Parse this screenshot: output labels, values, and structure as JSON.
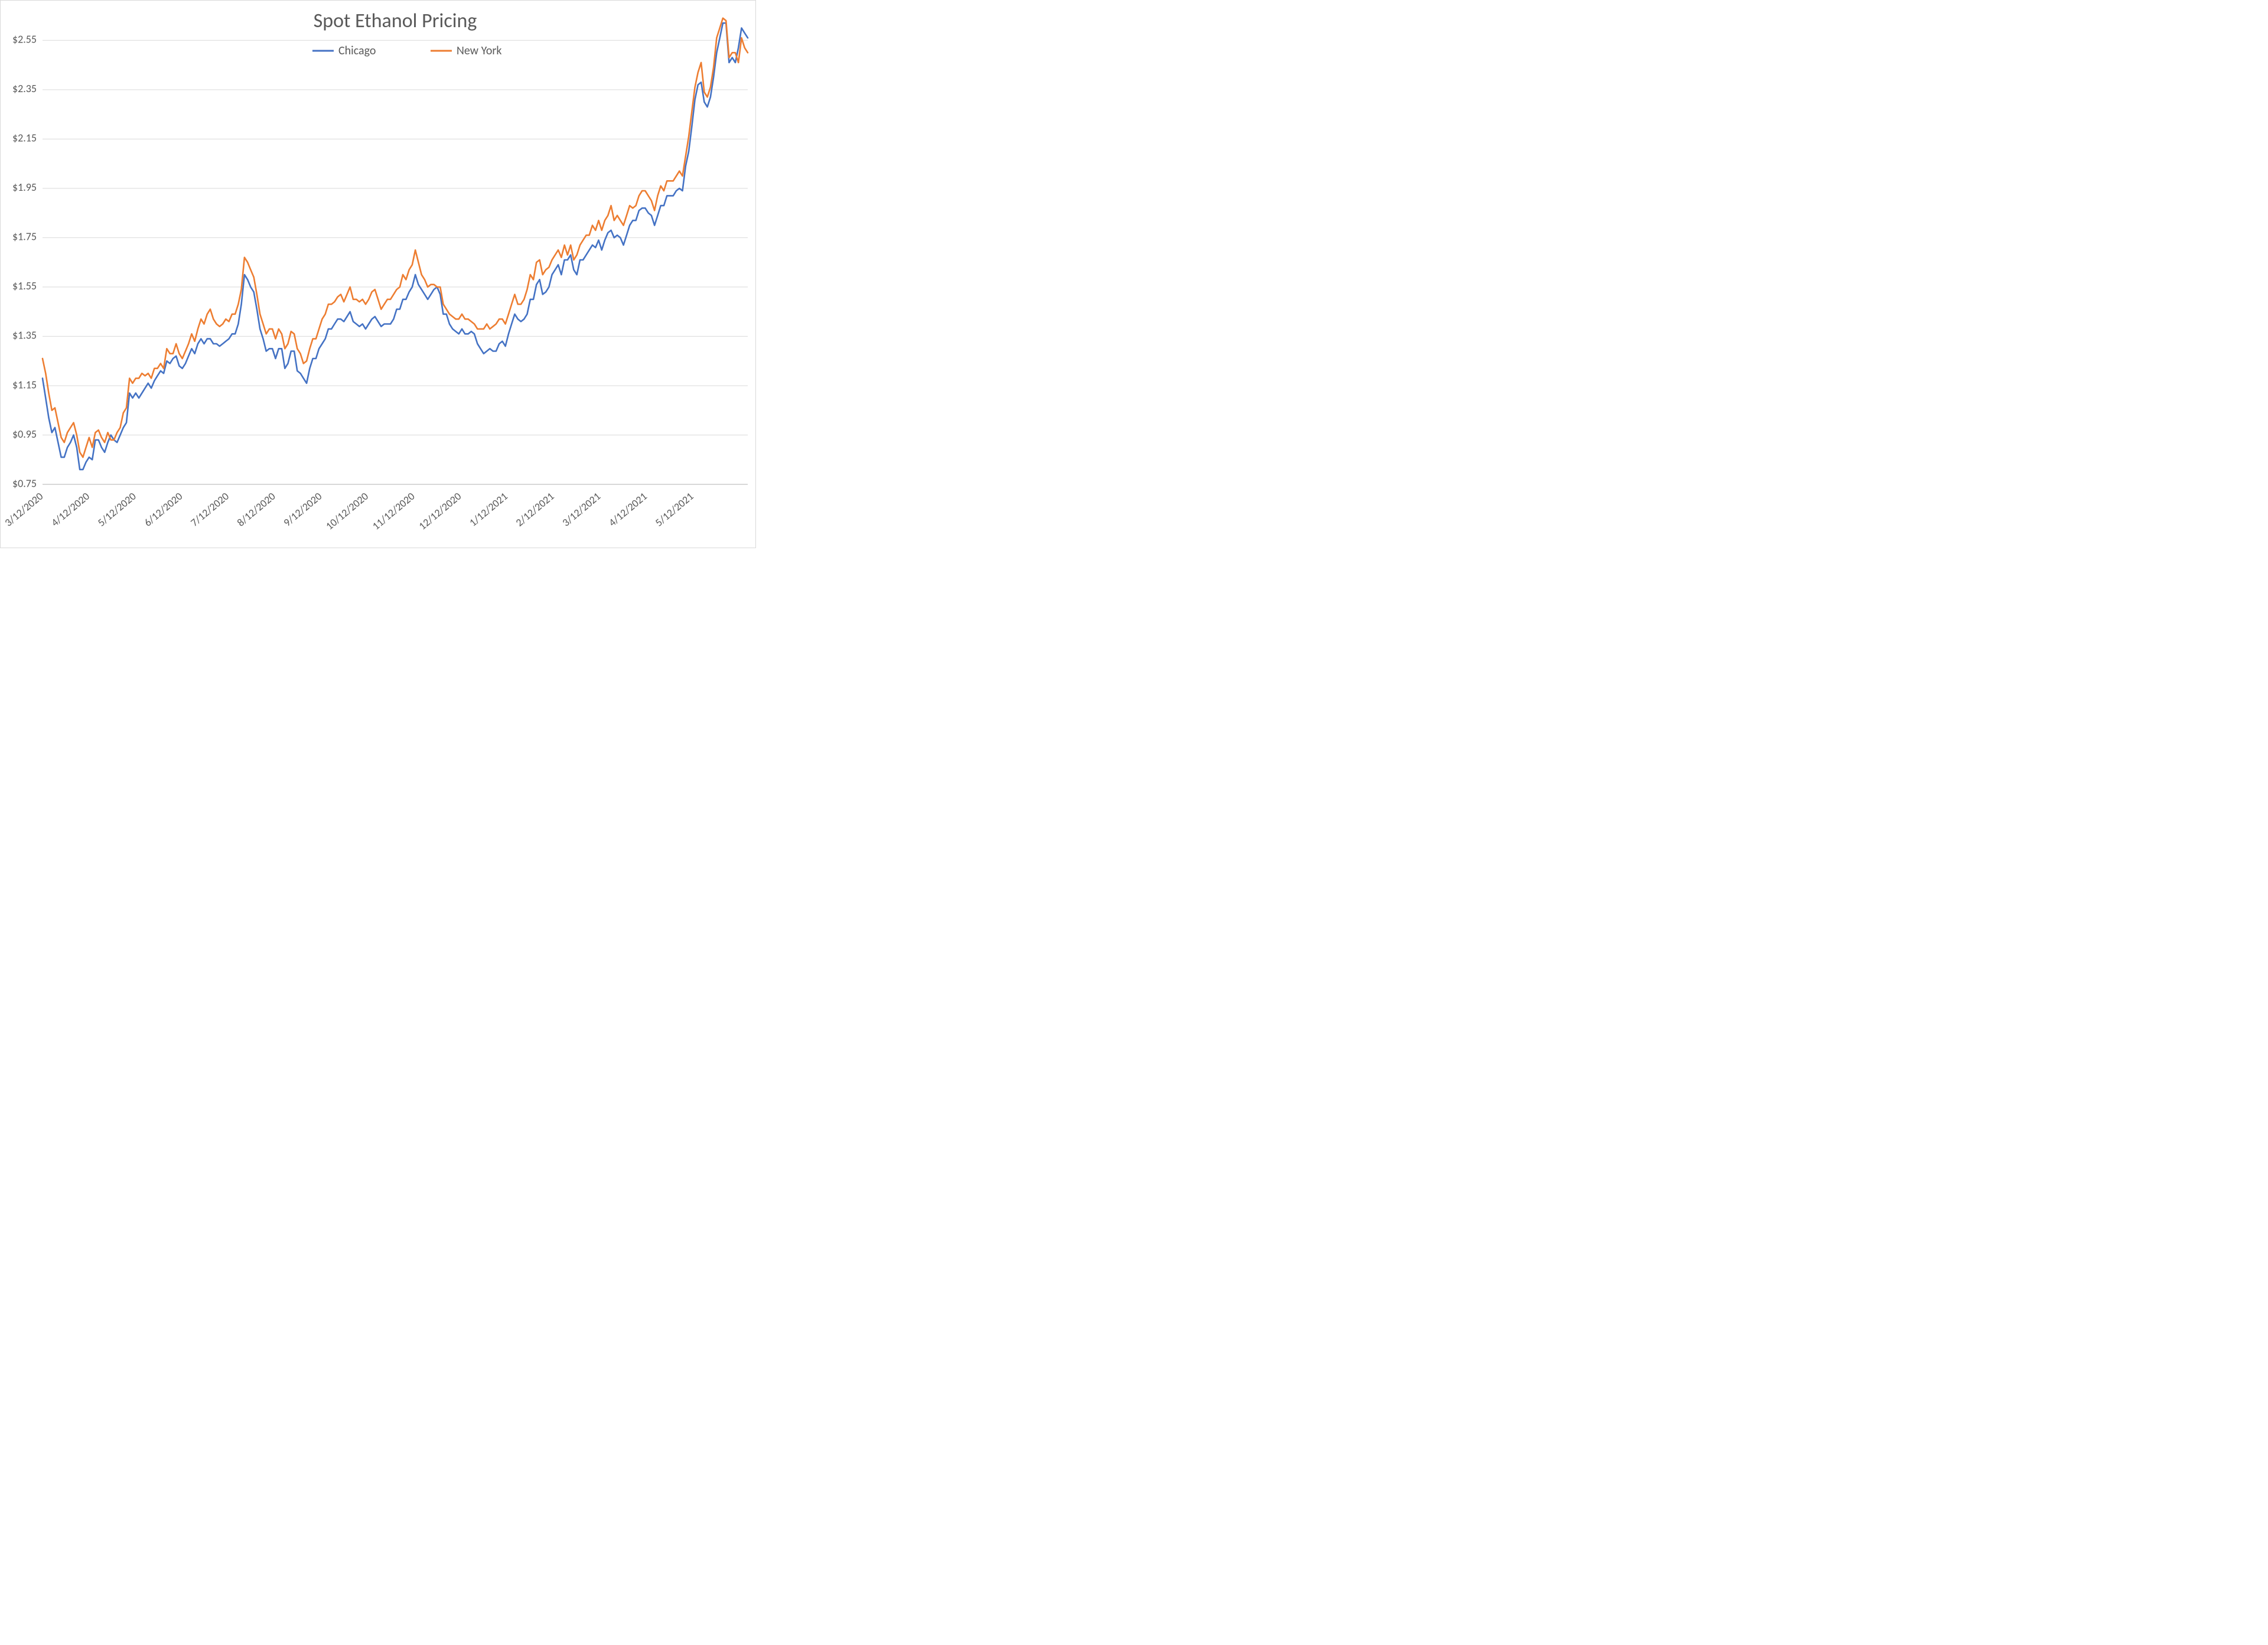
{
  "chart": {
    "type": "line",
    "title": "Spot Ethanol Pricing",
    "title_fontsize": 34,
    "title_color": "#595959",
    "background_color": "#ffffff",
    "grid_color": "#d9d9d9",
    "axis_color": "#bfbfbf",
    "tick_label_color": "#595959",
    "tick_fontsize": 18,
    "legend_fontsize": 20,
    "line_width": 2.6,
    "y_axis": {
      "min": 0.75,
      "max": 2.68,
      "tick_step": 0.2,
      "tick_format_prefix": "$",
      "tick_labels": [
        "$0.75",
        "$0.95",
        "$1.15",
        "$1.35",
        "$1.55",
        "$1.75",
        "$1.95",
        "$2.15",
        "$2.35",
        "$2.55"
      ]
    },
    "x_axis": {
      "labels": [
        "3/12/2020",
        "4/12/2020",
        "5/12/2020",
        "6/12/2020",
        "7/12/2020",
        "8/12/2020",
        "9/12/2020",
        "10/12/2020",
        "11/12/2020",
        "12/12/2020",
        "1/12/2021",
        "2/12/2021",
        "3/12/2021",
        "4/12/2021",
        "5/12/2021"
      ],
      "label_rotation_deg": -40
    },
    "legend": {
      "position": "top-center",
      "items": [
        {
          "label": "Chicago",
          "color": "#4472c4"
        },
        {
          "label": "New York",
          "color": "#ed7d31"
        }
      ]
    },
    "series": [
      {
        "name": "Chicago",
        "color": "#4472c4",
        "values": [
          1.18,
          1.1,
          1.02,
          0.96,
          0.98,
          0.92,
          0.86,
          0.86,
          0.9,
          0.92,
          0.95,
          0.9,
          0.81,
          0.81,
          0.84,
          0.86,
          0.85,
          0.93,
          0.93,
          0.9,
          0.88,
          0.92,
          0.95,
          0.93,
          0.92,
          0.95,
          0.98,
          1.0,
          1.12,
          1.1,
          1.12,
          1.1,
          1.12,
          1.14,
          1.16,
          1.14,
          1.17,
          1.19,
          1.21,
          1.2,
          1.25,
          1.24,
          1.26,
          1.27,
          1.23,
          1.22,
          1.24,
          1.27,
          1.3,
          1.28,
          1.32,
          1.34,
          1.32,
          1.34,
          1.34,
          1.32,
          1.32,
          1.31,
          1.32,
          1.33,
          1.34,
          1.36,
          1.36,
          1.4,
          1.48,
          1.6,
          1.58,
          1.55,
          1.53,
          1.46,
          1.38,
          1.34,
          1.29,
          1.3,
          1.3,
          1.26,
          1.3,
          1.3,
          1.22,
          1.24,
          1.29,
          1.29,
          1.21,
          1.2,
          1.18,
          1.16,
          1.22,
          1.26,
          1.26,
          1.3,
          1.32,
          1.34,
          1.38,
          1.38,
          1.4,
          1.42,
          1.42,
          1.41,
          1.43,
          1.45,
          1.41,
          1.4,
          1.39,
          1.4,
          1.38,
          1.4,
          1.42,
          1.43,
          1.41,
          1.39,
          1.4,
          1.4,
          1.4,
          1.42,
          1.46,
          1.46,
          1.5,
          1.5,
          1.53,
          1.55,
          1.6,
          1.56,
          1.54,
          1.52,
          1.5,
          1.52,
          1.54,
          1.55,
          1.52,
          1.44,
          1.44,
          1.4,
          1.38,
          1.37,
          1.36,
          1.38,
          1.36,
          1.36,
          1.37,
          1.36,
          1.32,
          1.3,
          1.28,
          1.29,
          1.3,
          1.29,
          1.29,
          1.32,
          1.33,
          1.31,
          1.36,
          1.4,
          1.44,
          1.42,
          1.41,
          1.42,
          1.44,
          1.5,
          1.5,
          1.56,
          1.58,
          1.52,
          1.53,
          1.55,
          1.6,
          1.62,
          1.64,
          1.6,
          1.66,
          1.66,
          1.68,
          1.62,
          1.6,
          1.66,
          1.66,
          1.68,
          1.7,
          1.72,
          1.71,
          1.74,
          1.7,
          1.74,
          1.77,
          1.78,
          1.75,
          1.76,
          1.75,
          1.72,
          1.76,
          1.8,
          1.82,
          1.82,
          1.86,
          1.87,
          1.87,
          1.85,
          1.84,
          1.8,
          1.84,
          1.88,
          1.88,
          1.92,
          1.92,
          1.92,
          1.94,
          1.95,
          1.94,
          2.04,
          2.1,
          2.2,
          2.31,
          2.37,
          2.38,
          2.3,
          2.28,
          2.32,
          2.4,
          2.5,
          2.56,
          2.62,
          2.62,
          2.46,
          2.48,
          2.46,
          2.52,
          2.6,
          2.58,
          2.56
        ]
      },
      {
        "name": "New York",
        "color": "#ed7d31",
        "values": [
          1.26,
          1.2,
          1.12,
          1.05,
          1.06,
          1.0,
          0.94,
          0.92,
          0.96,
          0.98,
          1.0,
          0.95,
          0.88,
          0.86,
          0.9,
          0.94,
          0.9,
          0.96,
          0.97,
          0.94,
          0.92,
          0.96,
          0.93,
          0.93,
          0.96,
          0.98,
          1.04,
          1.06,
          1.18,
          1.16,
          1.18,
          1.18,
          1.2,
          1.19,
          1.2,
          1.18,
          1.22,
          1.22,
          1.24,
          1.22,
          1.3,
          1.28,
          1.28,
          1.32,
          1.28,
          1.26,
          1.29,
          1.32,
          1.36,
          1.33,
          1.38,
          1.42,
          1.4,
          1.44,
          1.46,
          1.42,
          1.4,
          1.39,
          1.4,
          1.42,
          1.41,
          1.44,
          1.44,
          1.48,
          1.54,
          1.67,
          1.65,
          1.62,
          1.59,
          1.52,
          1.44,
          1.4,
          1.36,
          1.38,
          1.38,
          1.34,
          1.38,
          1.36,
          1.3,
          1.32,
          1.37,
          1.36,
          1.3,
          1.28,
          1.24,
          1.25,
          1.3,
          1.34,
          1.34,
          1.38,
          1.42,
          1.44,
          1.48,
          1.48,
          1.49,
          1.51,
          1.52,
          1.49,
          1.52,
          1.55,
          1.5,
          1.5,
          1.49,
          1.5,
          1.48,
          1.5,
          1.53,
          1.54,
          1.5,
          1.46,
          1.48,
          1.5,
          1.5,
          1.52,
          1.54,
          1.55,
          1.6,
          1.58,
          1.62,
          1.64,
          1.7,
          1.65,
          1.6,
          1.58,
          1.55,
          1.56,
          1.56,
          1.55,
          1.55,
          1.48,
          1.46,
          1.44,
          1.43,
          1.42,
          1.42,
          1.44,
          1.42,
          1.42,
          1.41,
          1.4,
          1.38,
          1.38,
          1.38,
          1.4,
          1.38,
          1.39,
          1.4,
          1.42,
          1.42,
          1.4,
          1.44,
          1.48,
          1.52,
          1.48,
          1.48,
          1.5,
          1.54,
          1.6,
          1.58,
          1.65,
          1.66,
          1.6,
          1.62,
          1.63,
          1.66,
          1.68,
          1.7,
          1.67,
          1.72,
          1.68,
          1.72,
          1.66,
          1.68,
          1.72,
          1.74,
          1.76,
          1.76,
          1.8,
          1.78,
          1.82,
          1.78,
          1.82,
          1.84,
          1.88,
          1.82,
          1.84,
          1.82,
          1.8,
          1.84,
          1.88,
          1.87,
          1.88,
          1.92,
          1.94,
          1.94,
          1.92,
          1.9,
          1.86,
          1.92,
          1.96,
          1.94,
          1.98,
          1.98,
          1.98,
          2.0,
          2.02,
          2.0,
          2.08,
          2.16,
          2.26,
          2.36,
          2.42,
          2.46,
          2.34,
          2.32,
          2.36,
          2.44,
          2.56,
          2.6,
          2.64,
          2.63,
          2.48,
          2.5,
          2.5,
          2.46,
          2.56,
          2.52,
          2.5
        ]
      }
    ]
  }
}
